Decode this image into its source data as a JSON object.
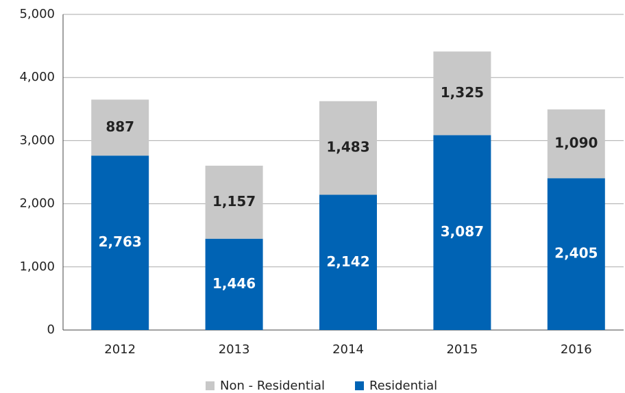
{
  "chart_data": {
    "type": "stacked_bar",
    "categories": [
      "2012",
      "2013",
      "2014",
      "2015",
      "2016"
    ],
    "series": [
      {
        "name": "Residential",
        "color": "#0063b4",
        "values": [
          2763,
          1446,
          2142,
          3087,
          2405
        ],
        "value_labels": [
          "2,763",
          "1,446",
          "2,142",
          "3,087",
          "2,405"
        ]
      },
      {
        "name": "Non - Residential",
        "color": "#c8c8c8",
        "values": [
          887,
          1157,
          1483,
          1325,
          1090
        ],
        "value_labels": [
          "887",
          "1,157",
          "1,483",
          "1,325",
          "1,090"
        ]
      }
    ],
    "ylim": [
      0,
      5000
    ],
    "yticks": [
      0,
      {
        "value": 1000,
        "label": "1,000"
      },
      {
        "value": 2000,
        "label": "2,000"
      },
      {
        "value": 3000,
        "label": "3,000"
      },
      {
        "value": 4000,
        "label": "4,000"
      },
      {
        "value": 5000,
        "label": "5,000"
      }
    ],
    "grid": true,
    "legend": "bottom"
  }
}
